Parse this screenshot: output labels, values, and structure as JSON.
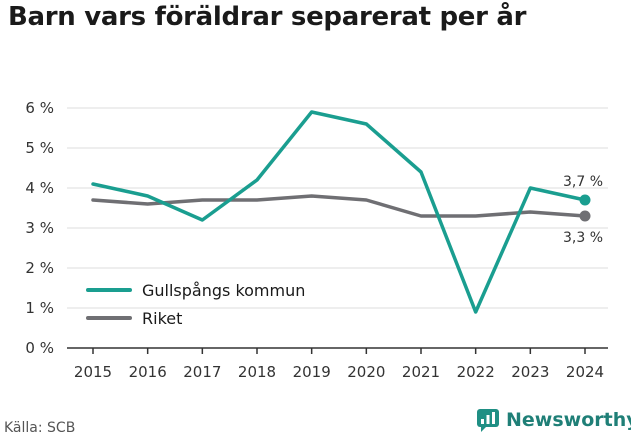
{
  "title": "Barn vars föräldrar separerat per år",
  "source": "Källa: SCB",
  "brand": {
    "name": "Newsworthy",
    "color": "#1f8f84"
  },
  "chart_data": {
    "type": "line",
    "title": "Barn vars föräldrar separerat per år",
    "xlabel": "",
    "ylabel": "",
    "x": [
      "2015",
      "2016",
      "2017",
      "2018",
      "2019",
      "2020",
      "2021",
      "2022",
      "2023",
      "2024"
    ],
    "ylim": [
      0,
      6
    ],
    "y_ticks": [
      "0 %",
      "1 %",
      "2 %",
      "3 %",
      "4 %",
      "5 %",
      "6 %"
    ],
    "grid": true,
    "legend_position": "lower-left",
    "series": [
      {
        "name": "Gullspångs kommun",
        "color": "#1a9e90",
        "values": [
          4.1,
          3.8,
          3.2,
          4.2,
          5.9,
          5.6,
          4.4,
          0.9,
          4.0,
          3.7
        ],
        "end_label": "3,7 %"
      },
      {
        "name": "Riket",
        "color": "#6f6f73",
        "values": [
          3.7,
          3.6,
          3.7,
          3.7,
          3.8,
          3.7,
          3.3,
          3.3,
          3.4,
          3.3
        ],
        "end_label": "3,3 %"
      }
    ]
  }
}
